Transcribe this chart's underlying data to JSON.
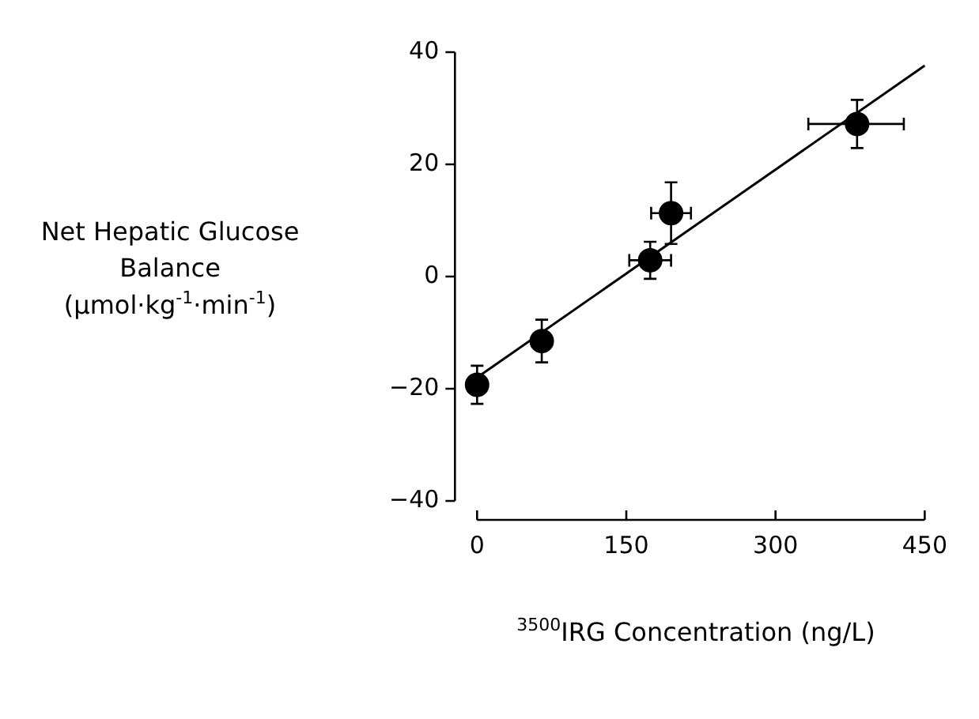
{
  "chart_data": {
    "type": "scatter",
    "xlabel": "$^{3500}$IRG Concentration (ng/L)",
    "ylabel": "Net Hepatic Glucose Balance (μmol·kg$^{-1}$·min$^{-1}$)",
    "xlim": [
      0,
      450
    ],
    "xticks": [
      0,
      150,
      300,
      450
    ],
    "ylim": [
      -40,
      40
    ],
    "yticks": [
      -40,
      -20,
      0,
      20,
      40
    ],
    "grid": false,
    "legend": false,
    "marker": "circle",
    "series": [
      {
        "type": "scatter",
        "color": "#000000",
        "x": [
          0,
          65,
          174,
          195,
          382
        ],
        "values": [
          -19.3,
          -11.5,
          2.9,
          11.3,
          27.2
        ],
        "errors": [
          3.4,
          3.8,
          3.3,
          5.5,
          4.3
        ],
        "xerrors": [
          null,
          null,
          21,
          20,
          [
            333,
            429
          ]
        ]
      },
      {
        "type": "line",
        "color": "#000000",
        "x": [
          0,
          450
        ],
        "values": [
          -18,
          37.6
        ],
        "marker": "none",
        "line_style": "solid"
      }
    ]
  }
}
